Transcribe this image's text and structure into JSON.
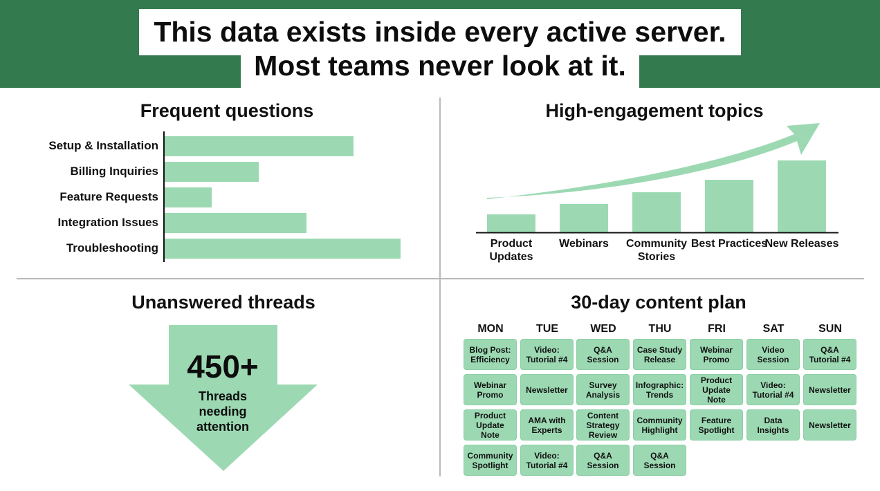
{
  "header": {
    "line1": "This data exists inside every active server.",
    "line2": "Most teams never look at it."
  },
  "frequent_questions": {
    "title": "Frequent questions",
    "items": [
      {
        "label": "Setup & Installation",
        "value": 0.8
      },
      {
        "label": "Billing Inquiries",
        "value": 0.4
      },
      {
        "label": "Feature Requests",
        "value": 0.2
      },
      {
        "label": "Integration Issues",
        "value": 0.6
      },
      {
        "label": "Troubleshooting",
        "value": 1.0
      }
    ]
  },
  "high_engagement": {
    "title": "High-engagement topics",
    "items": [
      {
        "label": "Product Updates",
        "value": 0.25
      },
      {
        "label": "Webinars",
        "value": 0.39
      },
      {
        "label": "Community Stories",
        "value": 0.56
      },
      {
        "label": "Best Practices",
        "value": 0.73
      },
      {
        "label": "New Releases",
        "value": 1.0
      }
    ]
  },
  "unanswered": {
    "title": "Unanswered threads",
    "number": "450+",
    "caption_lines": [
      "Threads",
      "needing",
      "attention"
    ]
  },
  "content_plan": {
    "title": "30-day content plan",
    "days": [
      "MON",
      "TUE",
      "WED",
      "THU",
      "FRI",
      "SAT",
      "SUN"
    ],
    "rows": [
      [
        "Blog Post: Efficiency",
        "Video: Tutorial #4",
        "Q&A Session",
        "Case Study Release",
        "Webinar Promo",
        "Video Session",
        "Q&A Tutorial #4"
      ],
      [
        "Webinar Promo",
        "Newsletter",
        "Survey Analysis",
        "Infographic: Trends",
        "Product Update Note",
        "Video: Tutorial #4",
        "Newsletter"
      ],
      [
        "Product Update Note",
        "AMA with Experts",
        "Content Strategy Review",
        "Community Highlight",
        "Feature Spotlight",
        "Data Insights",
        "Newsletter"
      ],
      [
        "Community Spotlight",
        "Video: Tutorial #4",
        "Q&A Session",
        "Q&A Session"
      ]
    ]
  },
  "colors": {
    "band": "#347a4f",
    "bar": "#9cd9b3"
  }
}
